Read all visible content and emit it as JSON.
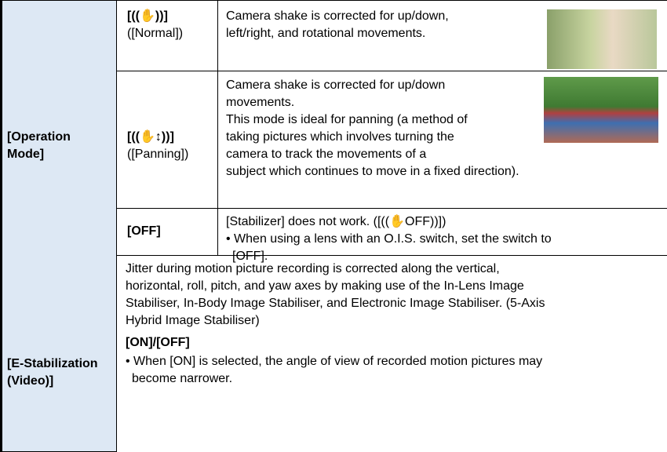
{
  "table": {
    "rows": [
      {
        "label": [
          "[Operation",
          "Mode]"
        ],
        "options": [
          {
            "name": "[((✋))]",
            "sub": "([Normal])",
            "description": [
              "Camera shake is corrected for up/down,",
              "left/right, and rotational movements."
            ]
          },
          {
            "name": "[((✋↕))]",
            "sub": "([Panning])",
            "description": [
              "Camera shake is corrected for up/down",
              "movements.",
              "This mode is ideal for panning (a method of",
              "taking pictures which involves turning the",
              "camera to track the movements of a",
              "subject which continues to move in a fixed direction)."
            ]
          },
          {
            "name": "[OFF]",
            "description": [
              "[Stabilizer] does not work. ([((✋OFF))])"
            ],
            "bullet": [
              "• When using a lens with an O.I.S. switch, set the switch to",
              "[OFF]."
            ]
          }
        ]
      },
      {
        "label": [
          "[E-Stabilization",
          "(Video)]"
        ],
        "description": [
          "Jitter during motion picture recording is corrected along the vertical,",
          "horizontal, roll, pitch, and yaw axes by making use of the In-Lens Image",
          "Stabiliser, In-Body Image Stabiliser, and Electronic Image Stabiliser. (5-Axis",
          "Hybrid Image Stabiliser)"
        ],
        "setting": "[ON]/[OFF]",
        "bullet": [
          "• When [ON] is selected, the angle of view of recorded motion pictures may",
          "become narrower."
        ]
      }
    ]
  }
}
